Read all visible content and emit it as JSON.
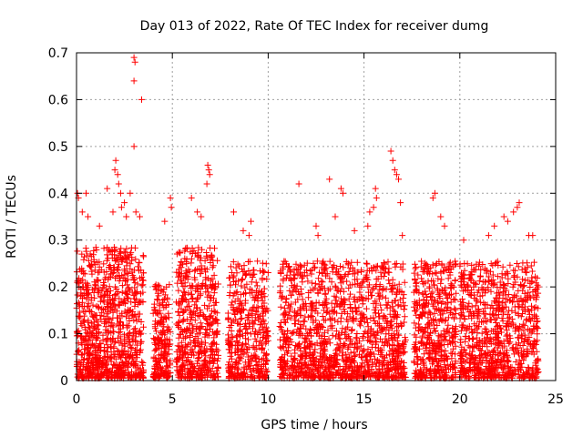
{
  "chart_data": {
    "type": "scatter",
    "title": "Day 013 of 2022, Rate Of TEC Index for receiver dumg",
    "xlabel": "GPS time / hours",
    "ylabel": "ROTI / TECUs",
    "xlim": [
      0,
      25
    ],
    "ylim": [
      0,
      0.7
    ],
    "xticks": [
      0,
      5,
      10,
      15,
      20,
      25
    ],
    "yticks": [
      0,
      0.1,
      0.2,
      0.3,
      0.4,
      0.5,
      0.6,
      0.7
    ],
    "grid": true,
    "marker": "+",
    "marker_color": "#ff0000",
    "series": [
      {
        "dense_segments": [
          {
            "x0": 0.0,
            "x1": 3.5,
            "ymax": 0.28,
            "count": 900
          },
          {
            "x0": 4.0,
            "x1": 4.9,
            "ymax": 0.2,
            "count": 200
          },
          {
            "x0": 5.2,
            "x1": 7.4,
            "ymax": 0.28,
            "count": 500
          },
          {
            "x0": 7.9,
            "x1": 10.0,
            "ymax": 0.25,
            "count": 420
          },
          {
            "x0": 10.6,
            "x1": 17.2,
            "ymax": 0.25,
            "count": 1300
          },
          {
            "x0": 17.6,
            "x1": 19.8,
            "ymax": 0.25,
            "count": 480
          },
          {
            "x0": 20.0,
            "x1": 24.1,
            "ymax": 0.25,
            "count": 850
          }
        ],
        "outliers": [
          [
            0.05,
            0.4
          ],
          [
            0.1,
            0.39
          ],
          [
            0.5,
            0.4
          ],
          [
            0.3,
            0.36
          ],
          [
            0.6,
            0.35
          ],
          [
            1.2,
            0.33
          ],
          [
            1.6,
            0.41
          ],
          [
            1.9,
            0.36
          ],
          [
            2.0,
            0.45
          ],
          [
            2.05,
            0.47
          ],
          [
            2.15,
            0.44
          ],
          [
            2.2,
            0.42
          ],
          [
            2.3,
            0.4
          ],
          [
            2.35,
            0.37
          ],
          [
            2.5,
            0.38
          ],
          [
            2.6,
            0.35
          ],
          [
            3.0,
            0.69
          ],
          [
            3.05,
            0.68
          ],
          [
            3.0,
            0.64
          ],
          [
            3.0,
            0.5
          ],
          [
            3.4,
            0.6
          ],
          [
            3.1,
            0.36
          ],
          [
            3.3,
            0.35
          ],
          [
            2.8,
            0.4
          ],
          [
            4.6,
            0.34
          ],
          [
            4.9,
            0.39
          ],
          [
            4.95,
            0.37
          ],
          [
            6.0,
            0.39
          ],
          [
            6.3,
            0.36
          ],
          [
            6.5,
            0.35
          ],
          [
            6.85,
            0.46
          ],
          [
            6.9,
            0.45
          ],
          [
            6.95,
            0.44
          ],
          [
            6.8,
            0.42
          ],
          [
            8.2,
            0.36
          ],
          [
            8.7,
            0.32
          ],
          [
            9.1,
            0.34
          ],
          [
            9.0,
            0.31
          ],
          [
            11.6,
            0.42
          ],
          [
            12.5,
            0.33
          ],
          [
            12.6,
            0.31
          ],
          [
            13.2,
            0.43
          ],
          [
            13.5,
            0.35
          ],
          [
            13.8,
            0.41
          ],
          [
            13.9,
            0.4
          ],
          [
            14.5,
            0.32
          ],
          [
            15.2,
            0.33
          ],
          [
            15.3,
            0.36
          ],
          [
            15.5,
            0.37
          ],
          [
            15.6,
            0.41
          ],
          [
            15.65,
            0.39
          ],
          [
            16.4,
            0.49
          ],
          [
            16.5,
            0.47
          ],
          [
            16.6,
            0.45
          ],
          [
            16.7,
            0.44
          ],
          [
            16.8,
            0.43
          ],
          [
            16.9,
            0.38
          ],
          [
            17.0,
            0.31
          ],
          [
            18.6,
            0.39
          ],
          [
            18.7,
            0.4
          ],
          [
            19.0,
            0.35
          ],
          [
            19.2,
            0.33
          ],
          [
            20.2,
            0.3
          ],
          [
            21.5,
            0.31
          ],
          [
            21.8,
            0.33
          ],
          [
            22.3,
            0.35
          ],
          [
            22.5,
            0.34
          ],
          [
            22.8,
            0.36
          ],
          [
            23.0,
            0.37
          ],
          [
            23.1,
            0.38
          ],
          [
            23.6,
            0.31
          ],
          [
            23.8,
            0.31
          ]
        ]
      }
    ]
  }
}
